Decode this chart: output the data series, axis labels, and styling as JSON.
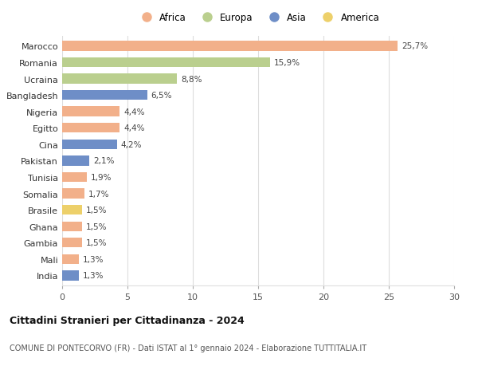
{
  "categories": [
    "Marocco",
    "Romania",
    "Ucraina",
    "Bangladesh",
    "Nigeria",
    "Egitto",
    "Cina",
    "Pakistan",
    "Tunisia",
    "Somalia",
    "Brasile",
    "Ghana",
    "Gambia",
    "Mali",
    "India"
  ],
  "values": [
    25.7,
    15.9,
    8.8,
    6.5,
    4.4,
    4.4,
    4.2,
    2.1,
    1.9,
    1.7,
    1.5,
    1.5,
    1.5,
    1.3,
    1.3
  ],
  "labels": [
    "25,7%",
    "15,9%",
    "8,8%",
    "6,5%",
    "4,4%",
    "4,4%",
    "4,2%",
    "2,1%",
    "1,9%",
    "1,7%",
    "1,5%",
    "1,5%",
    "1,5%",
    "1,3%",
    "1,3%"
  ],
  "continents": [
    "Africa",
    "Europa",
    "Europa",
    "Asia",
    "Africa",
    "Africa",
    "Asia",
    "Asia",
    "Africa",
    "Africa",
    "America",
    "Africa",
    "Africa",
    "Africa",
    "Asia"
  ],
  "colors": {
    "Africa": "#F2B08A",
    "Europa": "#BACF8E",
    "Asia": "#6E8EC7",
    "America": "#EDD06A"
  },
  "legend_order": [
    "Africa",
    "Europa",
    "Asia",
    "America"
  ],
  "title": "Cittadini Stranieri per Cittadinanza - 2024",
  "subtitle": "COMUNE DI PONTECORVO (FR) - Dati ISTAT al 1° gennaio 2024 - Elaborazione TUTTITALIA.IT",
  "xlim": [
    0,
    30
  ],
  "xticks": [
    0,
    5,
    10,
    15,
    20,
    25,
    30
  ],
  "background_color": "#ffffff",
  "grid_color": "#dddddd"
}
